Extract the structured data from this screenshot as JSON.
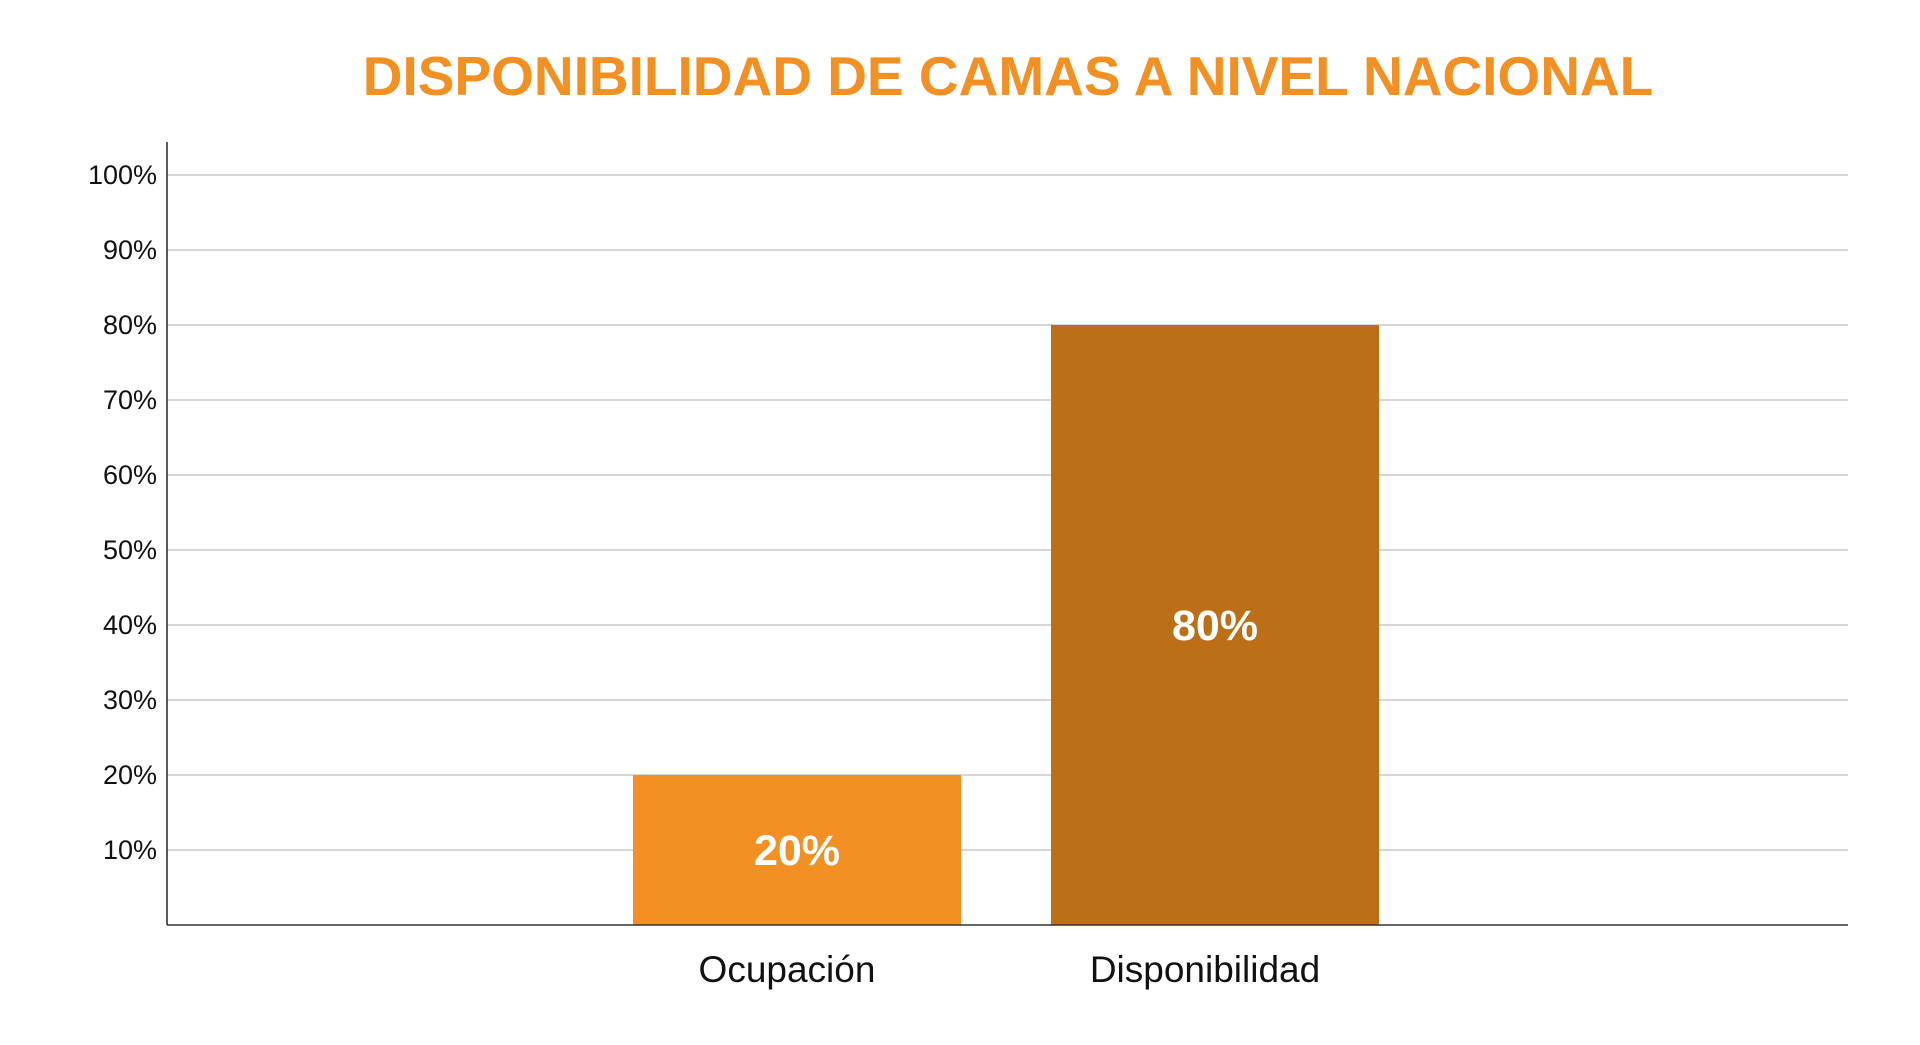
{
  "chart_data": {
    "type": "bar",
    "title": "DISPONIBILIDAD DE CAMAS A NIVEL NACIONAL",
    "xlabel": "",
    "ylabel": "",
    "categories": [
      "Ocupación",
      "Disponibilidad"
    ],
    "values": [
      20,
      80
    ],
    "data_labels": [
      "20%",
      "80%"
    ],
    "bar_colors": [
      "#F39023",
      "#BC6F16"
    ],
    "ylim": [
      0,
      100
    ],
    "yticks": [
      10,
      20,
      30,
      40,
      50,
      60,
      70,
      80,
      90,
      100
    ],
    "ytick_labels": [
      "10%",
      "20%",
      "30%",
      "40%",
      "50%",
      "60%",
      "70%",
      "80%",
      "90%",
      "100%"
    ],
    "grid": true,
    "legend": "none"
  },
  "colors": {
    "title": "#F39023",
    "grid": "#bdbdbd",
    "axis": "#333333"
  }
}
